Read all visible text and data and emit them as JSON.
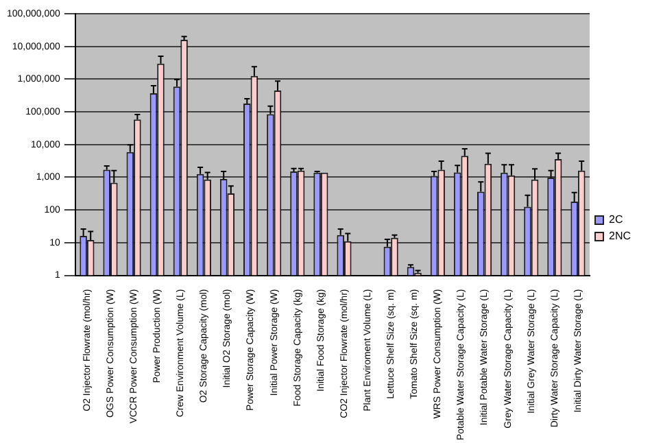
{
  "chart_data": {
    "type": "bar",
    "categories": [
      "O2 Injector Flowrate (mol/hr)",
      "OGS Power Consumption (W)",
      "VCCR Power Consumption (W)",
      "Power Production (W)",
      "Crew Environment Volume (L)",
      "O2 Storage Capacity (mol)",
      "Initial O2 Storage (mol)",
      "Power Storage Capacity (W)",
      "Initial Power Storage (W)",
      "Food Storage Capacity (kg)",
      "Initial Food Storage (kg)",
      "CO2 Injector Flowrate (mol/hr)",
      "Plant Enviroment Volume (L)",
      "Lettuce Shelf Size (sq. m)",
      "Tomato Shelf Size (sq. m)",
      "WRS Power Consumption (W)",
      "Potable Water Storage Capacity (L)",
      "Initial Potable Water Storage (L)",
      "Grey Water Storage Capacity (L)",
      "Initial Grey Water Storage (L)",
      "Dirty Water Storage Capacity (L)",
      "Initial Dirty Water Storage (L)"
    ],
    "series": [
      {
        "name": "2C",
        "color": "#9999ff",
        "values": [
          16,
          1700,
          5900,
          370000,
          590000,
          1260,
          880,
          180000,
          85000,
          1500,
          1380,
          17,
          null,
          7.5,
          1.8,
          1100,
          1400,
          360,
          1380,
          125,
          970,
          180
        ],
        "errors": [
          [
            16,
            26
          ],
          [
            1700,
            2200
          ],
          [
            5900,
            9800
          ],
          [
            370000,
            630000
          ],
          [
            590000,
            970000
          ],
          [
            1260,
            2000
          ],
          [
            880,
            1500
          ],
          [
            180000,
            250000
          ],
          [
            85000,
            150000
          ],
          [
            1500,
            1850
          ],
          [
            1380,
            1500
          ],
          [
            17,
            26
          ],
          null,
          [
            7.5,
            12.6
          ],
          [
            1.8,
            2.1
          ],
          [
            1100,
            1500
          ],
          [
            1400,
            2300
          ],
          [
            360,
            720
          ],
          [
            1380,
            2400
          ],
          [
            125,
            280
          ],
          [
            970,
            1600
          ],
          [
            180,
            340
          ]
        ]
      },
      {
        "name": "2NC",
        "color": "#ffcccc",
        "values": [
          12,
          680,
          58000,
          3000000,
          16000000,
          850,
          320,
          1250000,
          450000,
          1600,
          1380,
          11,
          null,
          14,
          1.2,
          1700,
          4500,
          2600,
          1140,
          850,
          3600,
          1600
        ],
        "errors": [
          [
            12,
            22
          ],
          [
            680,
            1600
          ],
          [
            58000,
            83000
          ],
          [
            3000000,
            5000000
          ],
          [
            16000000,
            20000000
          ],
          [
            850,
            1400
          ],
          [
            320,
            540
          ],
          [
            1250000,
            2400000
          ],
          [
            450000,
            870000
          ],
          [
            1600,
            1850
          ],
          null,
          [
            11,
            19
          ],
          null,
          [
            14,
            17
          ],
          [
            1.2,
            1.4
          ],
          [
            1700,
            3100
          ],
          [
            4500,
            7400
          ],
          [
            2600,
            5400
          ],
          [
            1140,
            2400
          ],
          [
            850,
            1800
          ],
          [
            3600,
            5400
          ],
          [
            1600,
            3100
          ]
        ]
      }
    ],
    "log": "y",
    "ylim": [
      1,
      100000000
    ],
    "yticks": [
      1,
      10,
      100,
      {
        "value": 1000,
        "label": "1,000"
      },
      {
        "value": 10000,
        "label": "10,000"
      },
      {
        "value": 100000,
        "label": "100,000"
      },
      {
        "value": 1000000,
        "label": "1,000,000"
      },
      {
        "value": 10000000,
        "label": "10,000,000"
      },
      {
        "value": 100000000,
        "label": "100,000,000"
      }
    ],
    "grid": "y",
    "legend": "right"
  }
}
